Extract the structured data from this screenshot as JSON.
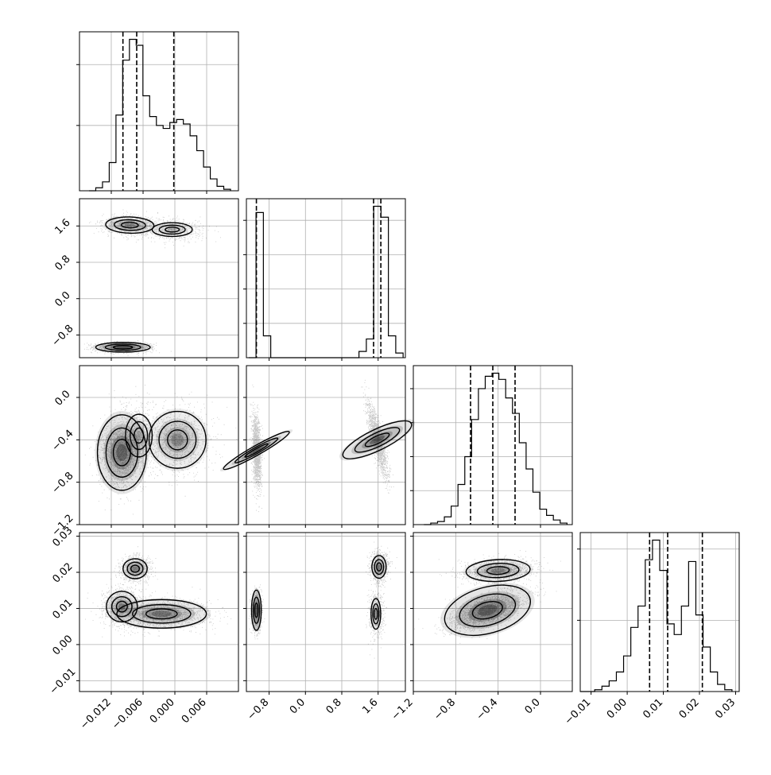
{
  "chart_data": {
    "type": "corner",
    "grid": true,
    "n_params": 4,
    "axes": [
      {
        "index": 0,
        "range": [
          -0.018,
          0.012
        ],
        "ticks": [
          -0.012,
          -0.006,
          0.0,
          0.006
        ],
        "tick_labels": [
          "−0.012",
          "−0.006",
          "0.000",
          "0.006"
        ]
      },
      {
        "index": 1,
        "range": [
          -1.3,
          2.2
        ],
        "ticks": [
          -0.8,
          0.0,
          0.8,
          1.6
        ],
        "tick_labels": [
          "−0.8",
          "0.0",
          "0.8",
          "1.6"
        ]
      },
      {
        "index": 2,
        "range": [
          -1.2,
          0.3
        ],
        "ticks": [
          -1.2,
          -0.8,
          -0.4,
          0.0
        ],
        "tick_labels": [
          "−1.2",
          "−0.8",
          "−0.4",
          "0.0"
        ]
      },
      {
        "index": 3,
        "range": [
          -0.013,
          0.031
        ],
        "ticks": [
          -0.01,
          0.0,
          0.01,
          0.02,
          0.03
        ],
        "tick_labels": [
          "−0.01",
          "0.00",
          "0.01",
          "0.02",
          "0.03"
        ]
      }
    ],
    "histograms": [
      {
        "param": 0,
        "bin_edges_range": [
          -0.0162,
          0.0105
        ],
        "counts": [
          0,
          2,
          6,
          19,
          51,
          88,
          102,
          98,
          64,
          50,
          44,
          42,
          46,
          48,
          45,
          37,
          27,
          16,
          8,
          3,
          1
        ],
        "quantiles": [
          -0.0098,
          -0.0072,
          -0.0002
        ],
        "y_ticks": [
          44,
          85
        ]
      },
      {
        "param": 1,
        "bin_edges_range": [
          -1.25,
          2.15
        ],
        "counts": [
          0,
          93,
          14,
          0,
          0,
          0,
          0,
          0,
          0,
          0,
          0,
          0,
          0,
          0,
          0,
          4,
          12,
          97,
          90,
          14,
          3
        ],
        "quantiles": [
          -1.08,
          1.5,
          1.66
        ],
        "y_ticks": [
          22,
          44,
          66,
          88
        ]
      },
      {
        "param": 2,
        "bin_edges_range": [
          -1.1,
          0.25
        ],
        "counts": [
          0,
          1,
          2,
          5,
          12,
          26,
          44,
          68,
          88,
          96,
          98,
          94,
          82,
          72,
          53,
          36,
          21,
          10,
          6,
          3,
          1
        ],
        "quantiles": [
          -0.66,
          -0.45,
          -0.24
        ],
        "y_ticks": [
          22,
          44,
          66,
          88
        ]
      },
      {
        "param": 3,
        "bin_edges_range": [
          -0.013,
          0.029
        ],
        "counts": [
          0,
          0,
          1,
          3,
          6,
          11,
          20,
          36,
          48,
          74,
          85,
          68,
          38,
          32,
          48,
          73,
          43,
          25,
          11,
          4,
          1
        ],
        "quantiles": [
          0.0062,
          0.0112,
          0.0208
        ],
        "y_ticks": [
          40,
          80
        ]
      }
    ],
    "pair_plots": [
      {
        "row": 1,
        "col": 0,
        "clusters": [
          {
            "cx": -0.0085,
            "cy": 1.62,
            "sx": 0.0028,
            "sy": 0.11,
            "rho": -0.1,
            "w": 0.3
          },
          {
            "cx": -0.0005,
            "cy": 1.52,
            "sx": 0.003,
            "sy": 0.12,
            "rho": 0.0,
            "w": 0.18
          },
          {
            "cx": -0.0098,
            "cy": -1.07,
            "sx": 0.0024,
            "sy": 0.05,
            "rho": 0.0,
            "w": 0.52
          }
        ]
      },
      {
        "row": 2,
        "col": 0,
        "clusters": [
          {
            "cx": -0.01,
            "cy": -0.52,
            "sx": 0.0022,
            "sy": 0.17,
            "rho": 0.0,
            "w": 0.5
          },
          {
            "cx": -0.0068,
            "cy": -0.36,
            "sx": 0.002,
            "sy": 0.16,
            "rho": 0.0,
            "w": 0.18
          },
          {
            "cx": 0.0005,
            "cy": -0.4,
            "sx": 0.0032,
            "sy": 0.16,
            "rho": 0.0,
            "w": 0.32
          }
        ]
      },
      {
        "row": 2,
        "col": 1,
        "clusters": [
          {
            "cx": -1.08,
            "cy": -0.5,
            "sx": 0.05,
            "sy": 0.17,
            "rho": -0.3,
            "w": 0.5
          },
          {
            "cx": 1.58,
            "cy": -0.4,
            "sx": 0.11,
            "sy": 0.17,
            "rho": -0.82,
            "w": 0.5
          }
        ]
      },
      {
        "row": 3,
        "col": 0,
        "clusters": [
          {
            "cx": -0.0075,
            "cy": 0.021,
            "sx": 0.0014,
            "sy": 0.0017,
            "rho": 0.0,
            "w": 0.3
          },
          {
            "cx": -0.01,
            "cy": 0.0105,
            "sx": 0.0018,
            "sy": 0.0026,
            "rho": 0.0,
            "w": 0.3
          },
          {
            "cx": -0.0025,
            "cy": 0.0085,
            "sx": 0.0045,
            "sy": 0.0021,
            "rho": 0.0,
            "w": 0.4
          }
        ]
      },
      {
        "row": 3,
        "col": 1,
        "clusters": [
          {
            "cx": -1.08,
            "cy": 0.0095,
            "sx": 0.05,
            "sy": 0.0026,
            "rho": 0.0,
            "w": 0.52
          },
          {
            "cx": 1.62,
            "cy": 0.0215,
            "sx": 0.1,
            "sy": 0.002,
            "rho": 0.0,
            "w": 0.28
          },
          {
            "cx": 1.55,
            "cy": 0.0085,
            "sx": 0.08,
            "sy": 0.0032,
            "rho": 0.0,
            "w": 0.2
          }
        ]
      },
      {
        "row": 3,
        "col": 2,
        "clusters": [
          {
            "cx": -0.4,
            "cy": 0.0205,
            "sx": 0.18,
            "sy": 0.0018,
            "rho": 0.15,
            "w": 0.32
          },
          {
            "cx": -0.5,
            "cy": 0.0095,
            "sx": 0.17,
            "sy": 0.0026,
            "rho": 0.6,
            "w": 0.68
          }
        ]
      }
    ]
  }
}
